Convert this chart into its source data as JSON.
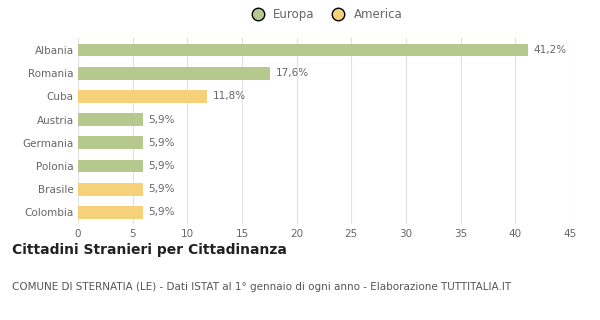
{
  "categories": [
    "Albania",
    "Romania",
    "Cuba",
    "Austria",
    "Germania",
    "Polonia",
    "Brasile",
    "Colombia"
  ],
  "values": [
    41.2,
    17.6,
    11.8,
    5.9,
    5.9,
    5.9,
    5.9,
    5.9
  ],
  "labels": [
    "41,2%",
    "17,6%",
    "11,8%",
    "5,9%",
    "5,9%",
    "5,9%",
    "5,9%",
    "5,9%"
  ],
  "colors": [
    "#b5c98e",
    "#b5c98e",
    "#f5d27a",
    "#b5c98e",
    "#b5c98e",
    "#b5c98e",
    "#f5d27a",
    "#f5d27a"
  ],
  "legend": [
    {
      "label": "Europa",
      "color": "#b5c98e"
    },
    {
      "label": "America",
      "color": "#f5d27a"
    }
  ],
  "xlim": [
    0,
    45
  ],
  "xticks": [
    0,
    5,
    10,
    15,
    20,
    25,
    30,
    35,
    40,
    45
  ],
  "title": "Cittadini Stranieri per Cittadinanza",
  "subtitle": "COMUNE DI STERNATIA (LE) - Dati ISTAT al 1° gennaio di ogni anno - Elaborazione TUTTITALIA.IT",
  "bg_color": "#ffffff",
  "grid_color": "#e0e0e0",
  "bar_height": 0.55,
  "title_fontsize": 10,
  "subtitle_fontsize": 7.5,
  "label_fontsize": 7.5,
  "tick_fontsize": 7.5,
  "legend_fontsize": 8.5
}
